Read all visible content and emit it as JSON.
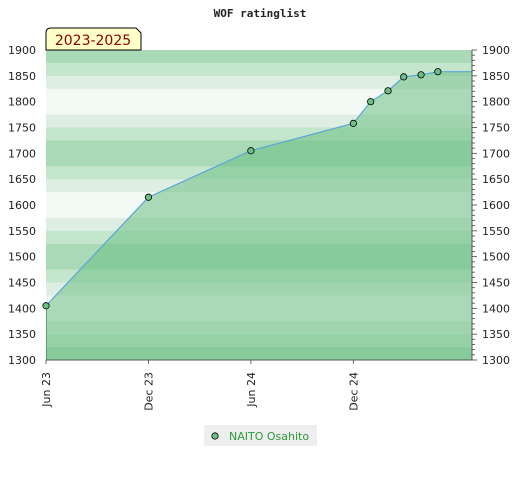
{
  "chart_data": {
    "type": "area",
    "title": "WOF ratinglist",
    "badge": "2023-2025",
    "xlabel": "",
    "ylabel": "",
    "ylim": [
      1300,
      1900
    ],
    "yticks": [
      1300,
      1350,
      1400,
      1450,
      1500,
      1550,
      1600,
      1650,
      1700,
      1750,
      1800,
      1850,
      1900
    ],
    "xlim": [
      "2023-06-01",
      "2025-07-01"
    ],
    "xticks": [
      {
        "label": "Jun 23",
        "date": "2023-06-01"
      },
      {
        "label": "Dec 23",
        "date": "2023-12-01"
      },
      {
        "label": "Jun 24",
        "date": "2024-06-01"
      },
      {
        "label": "Dec 24",
        "date": "2024-12-01"
      }
    ],
    "grid": true,
    "legend_position": "bottom-center",
    "series": [
      {
        "name": "NAITO Osahito",
        "color": "#2e9a3e",
        "line_color": "#5aa6d6",
        "fill_color": "#6dbf85",
        "x": [
          "2023-06-01",
          "2023-12-01",
          "2024-06-01",
          "2024-12-01",
          "2025-01-01",
          "2025-02-01",
          "2025-03-01",
          "2025-04-01",
          "2025-05-01"
        ],
        "y": [
          1405,
          1615,
          1705,
          1758,
          1800,
          1821,
          1848,
          1852,
          1858
        ]
      }
    ]
  }
}
